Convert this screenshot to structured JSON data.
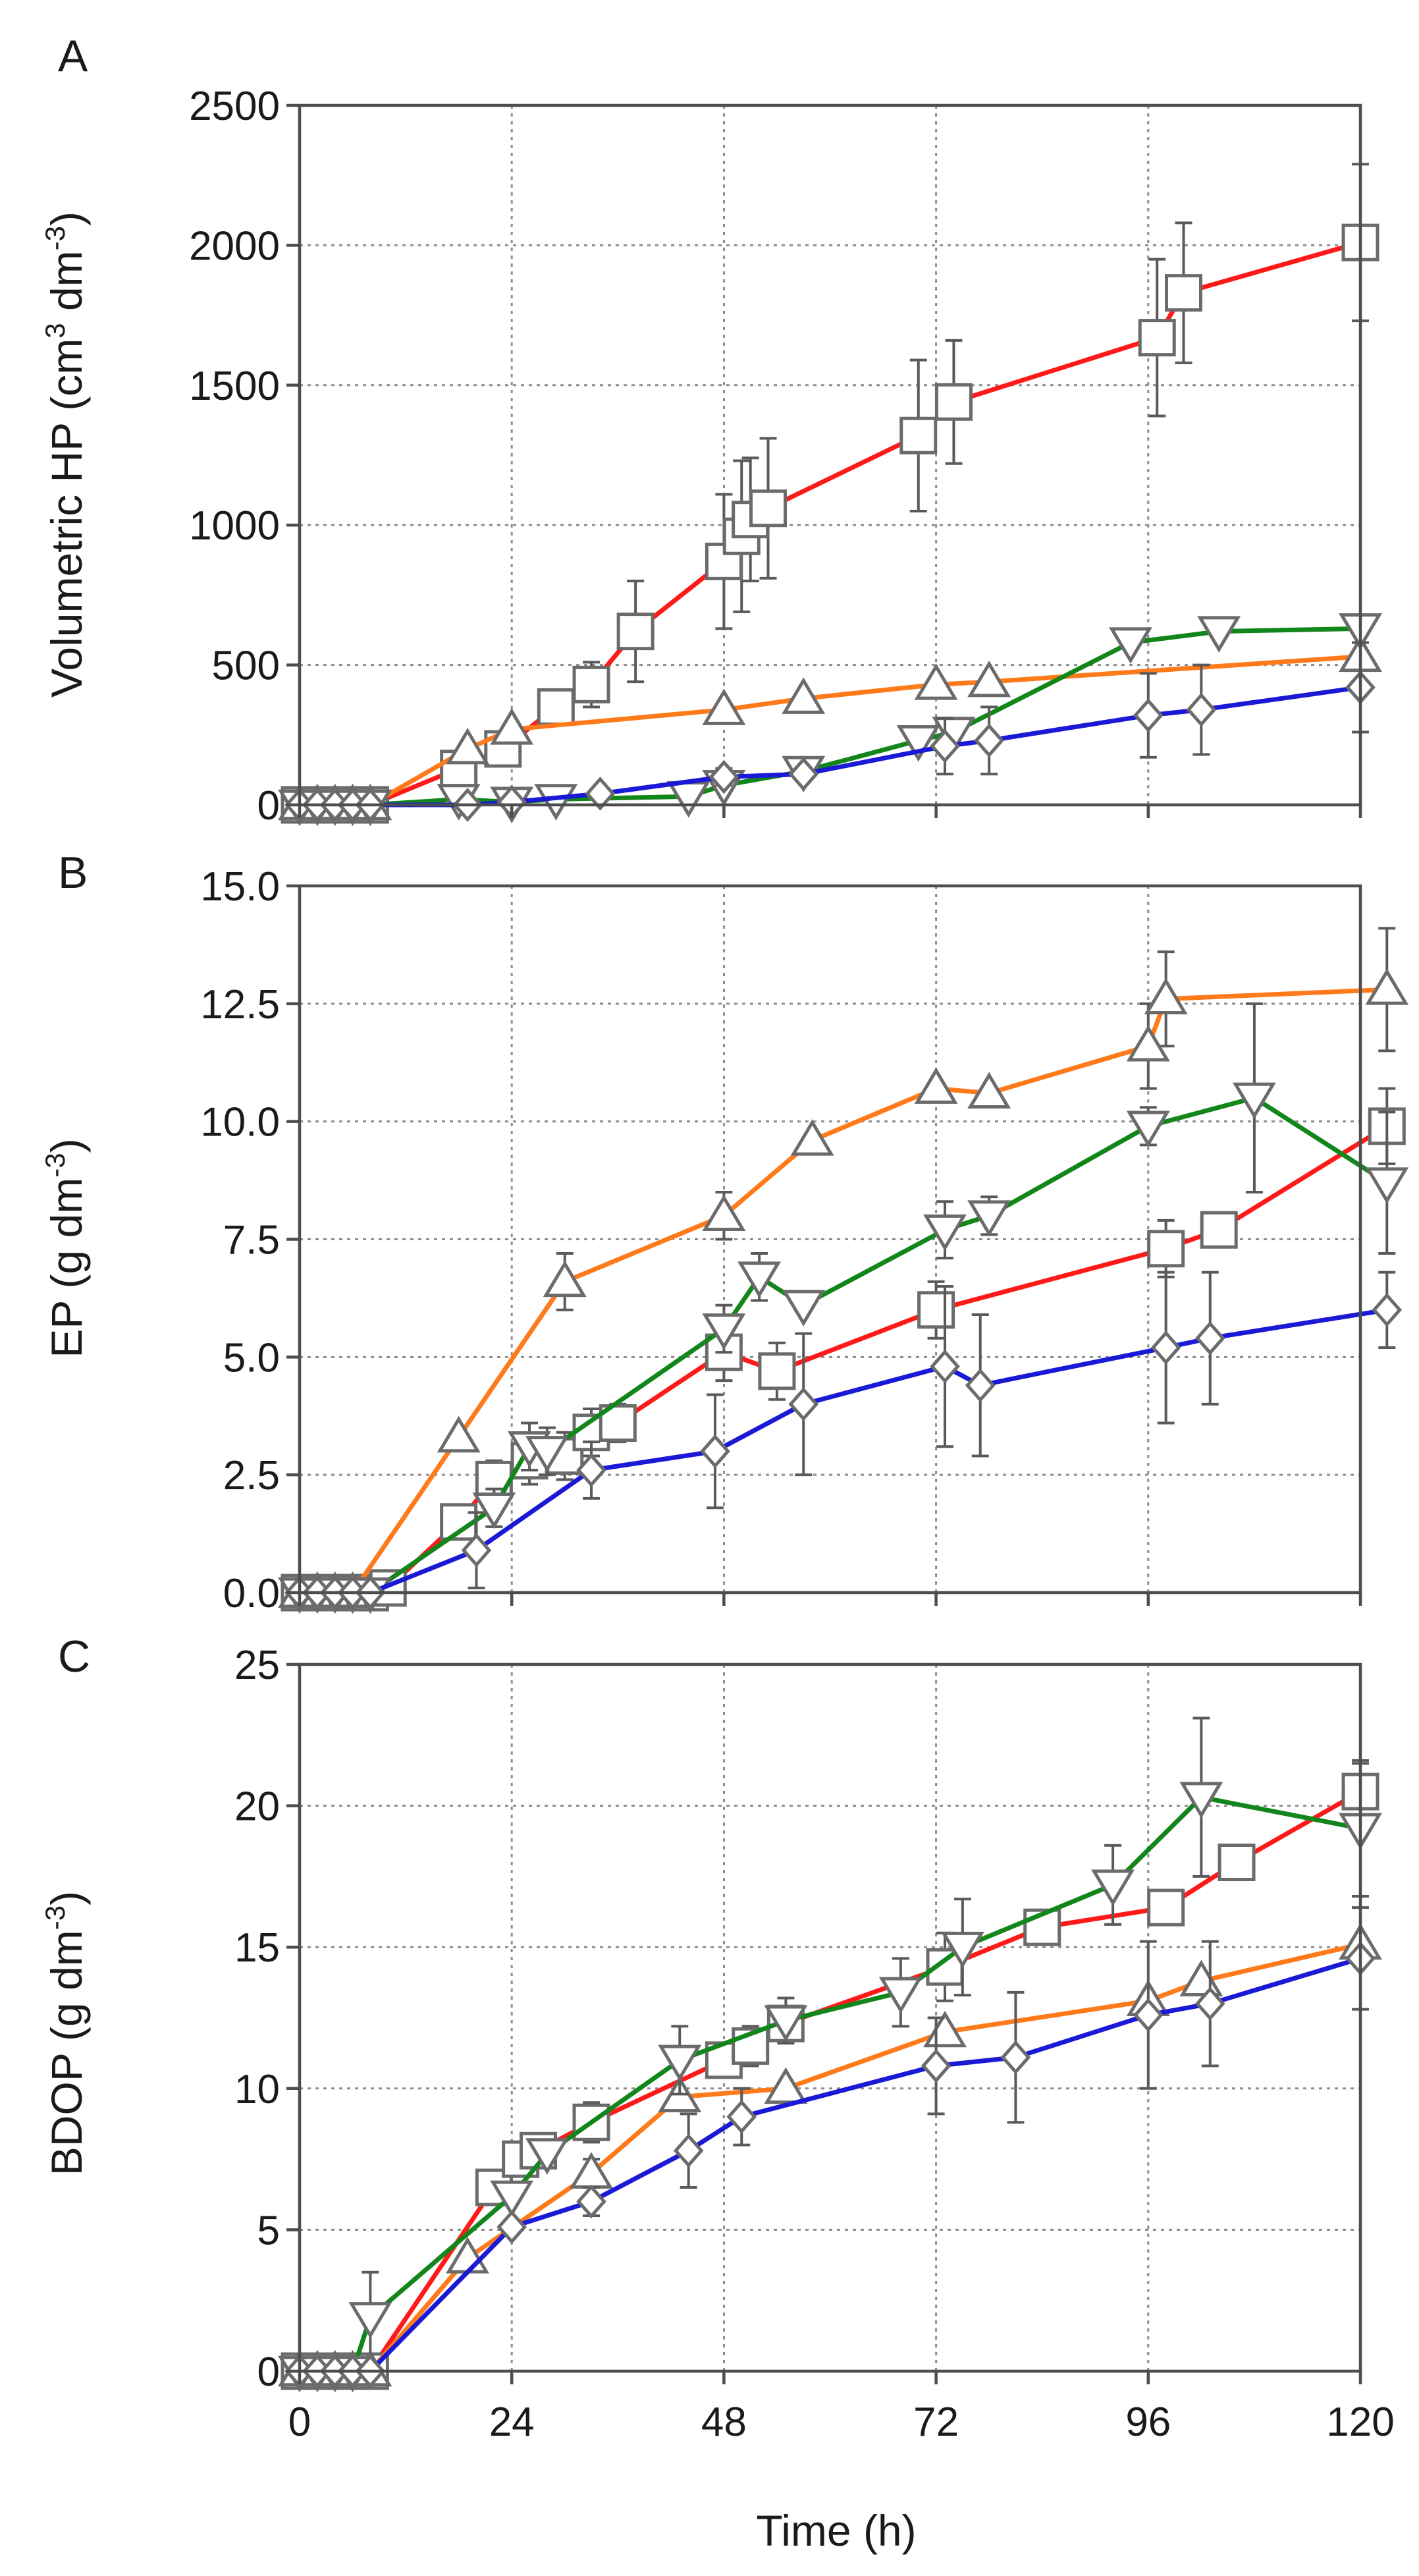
{
  "chart_data": [
    {
      "type": "line",
      "panel": "A",
      "xlabel": "",
      "ylabel_pre": "Volumetric  HP (cm",
      "ylabel_sup1": "3",
      "ylabel_mid": " dm",
      "ylabel_sup2": "-3",
      "ylabel_post": ")",
      "xlim": [
        0,
        120
      ],
      "ylim": [
        0,
        2500
      ],
      "xticks": [
        0,
        24,
        48,
        72,
        96,
        120
      ],
      "yticks": [
        0,
        500,
        1000,
        1500,
        2000,
        2500
      ],
      "ytick_labels": [
        "0",
        "500",
        "1000",
        "1500",
        "2000",
        "2500"
      ],
      "grid": true,
      "series": [
        {
          "name": "red (square)",
          "color": "#ff1a1a",
          "marker": "square",
          "x": [
            0,
            2,
            4,
            6,
            8,
            18,
            23,
            29,
            33,
            38,
            48,
            50,
            51,
            53,
            70,
            74,
            97,
            100,
            120
          ],
          "y": [
            0,
            0,
            0,
            0,
            0,
            130,
            200,
            350,
            430,
            620,
            870,
            960,
            1020,
            1060,
            1320,
            1440,
            1670,
            1830,
            2010
          ],
          "err": [
            0,
            0,
            0,
            0,
            0,
            40,
            50,
            50,
            80,
            180,
            240,
            270,
            220,
            250,
            270,
            220,
            280,
            250,
            280
          ]
        },
        {
          "name": "orange (triangle)",
          "color": "#ff7a1a",
          "marker": "triangle-up",
          "x": [
            0,
            2,
            4,
            6,
            8,
            19,
            24,
            48,
            57,
            72,
            78,
            120
          ],
          "y": [
            0,
            0,
            0,
            0,
            0,
            200,
            270,
            340,
            380,
            430,
            440,
            530
          ],
          "err": [
            0,
            0,
            0,
            0,
            0,
            0,
            0,
            0,
            0,
            0,
            0,
            0
          ]
        },
        {
          "name": "green (inverted triangle)",
          "color": "#12861a",
          "marker": "triangle-down",
          "x": [
            0,
            2,
            4,
            6,
            8,
            18,
            24,
            29,
            44,
            48,
            57,
            70,
            74,
            94,
            104,
            120
          ],
          "y": [
            0,
            0,
            0,
            0,
            0,
            20,
            10,
            20,
            30,
            70,
            120,
            230,
            260,
            580,
            620,
            630
          ],
          "err": [
            0,
            0,
            0,
            0,
            0,
            0,
            0,
            0,
            0,
            0,
            0,
            0,
            0,
            0,
            0,
            0
          ]
        },
        {
          "name": "blue (diamond)",
          "color": "#1a1ad6",
          "marker": "diamond",
          "x": [
            0,
            2,
            4,
            6,
            8,
            19,
            24,
            34,
            48,
            57,
            73,
            78,
            96,
            102,
            120
          ],
          "y": [
            0,
            0,
            0,
            0,
            0,
            0,
            10,
            40,
            100,
            110,
            210,
            230,
            320,
            340,
            420
          ],
          "err": [
            0,
            0,
            0,
            0,
            0,
            0,
            0,
            0,
            30,
            0,
            100,
            120,
            150,
            160,
            160
          ]
        }
      ]
    },
    {
      "type": "line",
      "panel": "B",
      "xlabel": "",
      "ylabel_pre": "EP (g dm",
      "ylabel_sup1": "-3",
      "ylabel_mid": "",
      "ylabel_sup2": "",
      "ylabel_post": ")",
      "xlim": [
        0,
        120
      ],
      "ylim": [
        0,
        15
      ],
      "xticks": [
        0,
        24,
        48,
        72,
        96,
        120
      ],
      "yticks": [
        0,
        2.5,
        5,
        7.5,
        10,
        12.5,
        15
      ],
      "ytick_labels": [
        "0.0",
        "2.5",
        "5.0",
        "7.5",
        "10.0",
        "12.5",
        "15.0"
      ],
      "grid": true,
      "series": [
        {
          "name": "red (square)",
          "color": "#ff1a1a",
          "marker": "square",
          "x": [
            0,
            2,
            4,
            6,
            8,
            10,
            18,
            22,
            26,
            30,
            33,
            36,
            48,
            54,
            72,
            98,
            104,
            123
          ],
          "y": [
            0,
            0,
            0,
            0,
            0,
            0.1,
            1.5,
            2.4,
            2.8,
            2.9,
            3.4,
            3.6,
            5.1,
            4.7,
            6.0,
            7.3,
            7.7,
            9.9
          ],
          "err": [
            0,
            0,
            0,
            0,
            0,
            0,
            0.3,
            0.4,
            0.5,
            0.5,
            0.5,
            0.4,
            0.6,
            0.6,
            0.6,
            0.6,
            0,
            0.8
          ]
        },
        {
          "name": "orange (triangle)",
          "color": "#ff7a1a",
          "marker": "triangle-up",
          "x": [
            0,
            2,
            4,
            6,
            18,
            30,
            48,
            58,
            72,
            78,
            96,
            98,
            123
          ],
          "y": [
            0,
            0,
            0,
            0,
            3.3,
            6.6,
            8.0,
            9.6,
            10.7,
            10.6,
            11.6,
            12.6,
            12.8
          ],
          "err": [
            0,
            0,
            0,
            0,
            0,
            0.6,
            0.5,
            0,
            0,
            0,
            0.9,
            1.0,
            1.3
          ]
        },
        {
          "name": "green (inverted triangle)",
          "color": "#12861a",
          "marker": "triangle-down",
          "x": [
            0,
            2,
            4,
            6,
            8,
            22,
            26,
            28,
            48,
            52,
            57,
            73,
            78,
            96,
            108,
            123
          ],
          "y": [
            0,
            0,
            0,
            0,
            0,
            1.8,
            3.1,
            3.0,
            5.6,
            6.7,
            6.1,
            7.7,
            8.0,
            9.9,
            10.5,
            8.7
          ],
          "err": [
            0,
            0,
            0,
            0,
            0,
            0.4,
            0.5,
            0.5,
            0.5,
            0.5,
            0,
            0.6,
            0.4,
            0.4,
            2.0,
            1.5
          ]
        },
        {
          "name": "blue (diamond)",
          "color": "#1a1ad6",
          "marker": "diamond",
          "x": [
            0,
            2,
            4,
            6,
            8,
            20,
            33,
            47,
            57,
            73,
            77,
            98,
            103,
            123
          ],
          "y": [
            0,
            0,
            0,
            0,
            0,
            0.9,
            2.6,
            3.0,
            4.0,
            4.8,
            4.4,
            5.2,
            5.4,
            6.0
          ],
          "err": [
            0,
            0,
            0,
            0,
            0,
            0.8,
            0.6,
            1.2,
            1.5,
            1.7,
            1.5,
            1.6,
            1.4,
            0.8
          ]
        }
      ]
    },
    {
      "type": "line",
      "panel": "C",
      "xlabel": "Time (h)",
      "ylabel_pre": "BDOP (g dm",
      "ylabel_sup1": "-3",
      "ylabel_mid": "",
      "ylabel_sup2": "",
      "ylabel_post": ")",
      "xlim": [
        0,
        120
      ],
      "ylim": [
        0,
        25
      ],
      "xticks": [
        0,
        24,
        48,
        72,
        96,
        120
      ],
      "xtick_labels": [
        "0",
        "24",
        "48",
        "72",
        "96",
        "120"
      ],
      "yticks": [
        0,
        5,
        10,
        15,
        20,
        25
      ],
      "ytick_labels": [
        "0",
        "5",
        "10",
        "15",
        "20",
        "25"
      ],
      "grid": true,
      "series": [
        {
          "name": "red (square)",
          "color": "#ff1a1a",
          "marker": "square",
          "x": [
            0,
            2,
            4,
            6,
            8,
            22,
            25,
            27,
            33,
            48,
            51,
            55,
            73,
            84,
            98,
            106,
            120
          ],
          "y": [
            0,
            0,
            0,
            0,
            0,
            6.5,
            7.5,
            7.8,
            8.8,
            11.0,
            11.5,
            12.3,
            14.3,
            15.7,
            16.4,
            18.0,
            20.5
          ],
          "err": [
            0,
            0,
            0,
            0,
            0,
            0,
            0.5,
            0.5,
            0.7,
            0.5,
            0.7,
            0.6,
            1.2,
            0.6,
            0.6,
            0,
            1.0
          ]
        },
        {
          "name": "orange (triangle)",
          "color": "#ff7a1a",
          "marker": "triangle-up",
          "x": [
            0,
            2,
            4,
            6,
            8,
            19,
            33,
            43,
            55,
            73,
            96,
            102,
            120
          ],
          "y": [
            0,
            0,
            0,
            0,
            0,
            4.0,
            7.0,
            9.7,
            10.0,
            12.0,
            13.1,
            13.8,
            15.1
          ],
          "err": [
            0,
            0,
            0,
            0,
            0,
            0,
            0.5,
            0,
            0,
            0,
            0,
            0,
            0
          ]
        },
        {
          "name": "green (inverted triangle)",
          "color": "#12861a",
          "marker": "triangle-down",
          "x": [
            0,
            2,
            4,
            6,
            8,
            24,
            28,
            43,
            55,
            68,
            75,
            92,
            102,
            120
          ],
          "y": [
            0,
            0,
            0,
            0,
            1.9,
            6.2,
            7.7,
            11.0,
            12.4,
            13.4,
            15.0,
            17.2,
            20.3,
            19.2
          ],
          "err": [
            0,
            0,
            0,
            0,
            1.6,
            0,
            0,
            1.2,
            0.8,
            1.2,
            1.7,
            1.4,
            2.8,
            2.4
          ]
        },
        {
          "name": "blue (diamond)",
          "color": "#1a1ad6",
          "marker": "diamond",
          "x": [
            0,
            2,
            4,
            6,
            8,
            24,
            33,
            44,
            50,
            72,
            81,
            96,
            103,
            120
          ],
          "y": [
            0,
            0,
            0,
            0,
            0,
            5.1,
            6.0,
            7.8,
            9.0,
            10.8,
            11.1,
            12.6,
            13.0,
            14.6
          ],
          "err": [
            0,
            0,
            0,
            0,
            0,
            0,
            0.5,
            1.3,
            1.0,
            1.7,
            2.3,
            2.6,
            2.2,
            1.8
          ]
        }
      ]
    }
  ]
}
